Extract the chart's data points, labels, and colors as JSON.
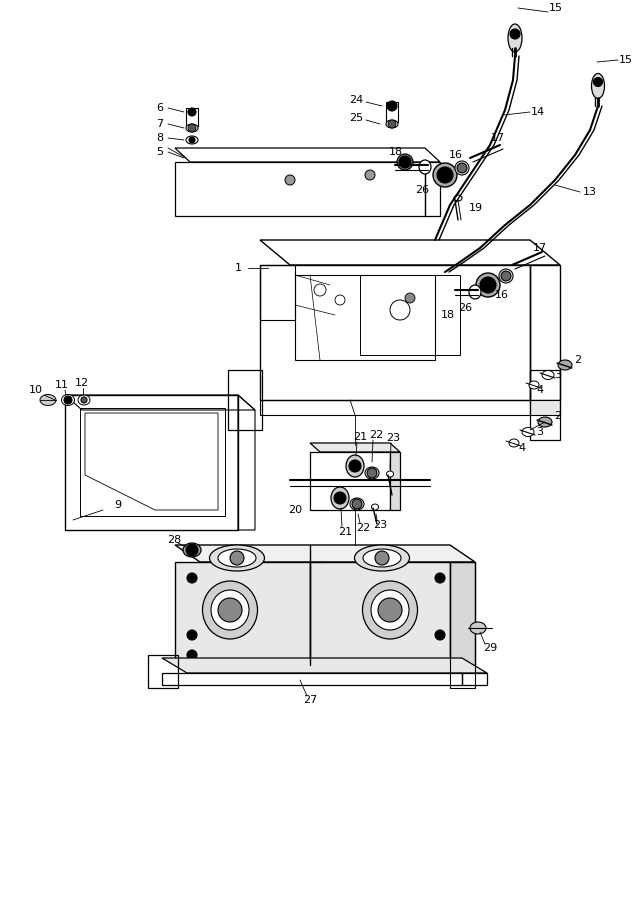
{
  "bg_color": "#ffffff",
  "line_color": "#000000",
  "fig_width": 6.37,
  "fig_height": 9.15,
  "dpi": 100
}
